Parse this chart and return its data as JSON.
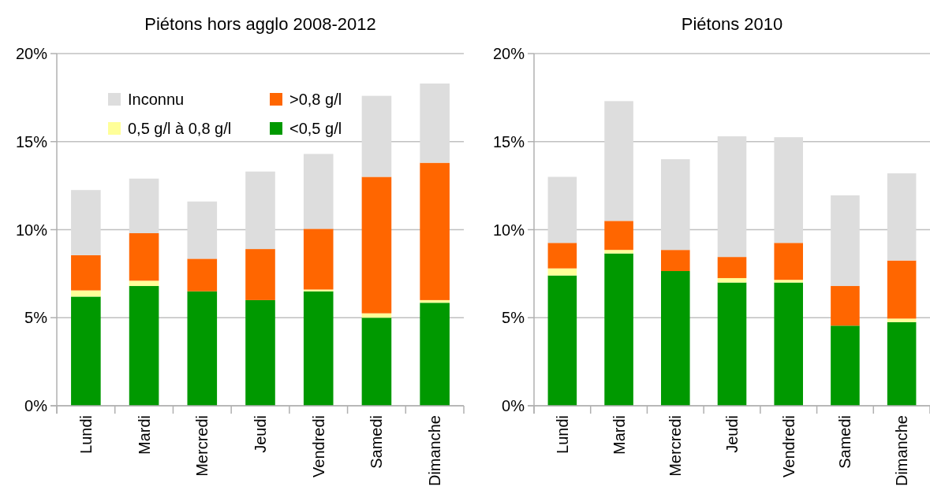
{
  "chart_data": [
    {
      "type": "bar",
      "title": "Piétons hors agglo 2008-2012",
      "stacked": true,
      "categories": [
        "Lundi",
        "Mardi",
        "Mercredi",
        "Jeudi",
        "Vendredi",
        "Samedi",
        "Dimanche"
      ],
      "series": [
        {
          "name": "<0,5 g/l",
          "color": "#009900",
          "values": [
            6.2,
            6.8,
            6.5,
            6.0,
            6.5,
            5.0,
            5.85
          ]
        },
        {
          "name": "0,5 g/l à 0,8 g/l",
          "color": "#ffff99",
          "values": [
            0.35,
            0.3,
            0,
            0,
            0.1,
            0.25,
            0.15
          ]
        },
        {
          "name": ">0,8 g/l",
          "color": "#ff6600",
          "values": [
            2.0,
            2.7,
            1.85,
            2.9,
            3.45,
            7.75,
            7.8
          ]
        },
        {
          "name": "Inconnu",
          "color": "#dddddd",
          "values": [
            3.7,
            3.1,
            3.25,
            4.4,
            4.25,
            4.6,
            4.5
          ]
        }
      ],
      "ylim": [
        0,
        20
      ],
      "yticks": [
        {
          "value": 0,
          "label": "0%"
        },
        {
          "value": 5,
          "label": "5%"
        },
        {
          "value": 10,
          "label": "10%"
        },
        {
          "value": 15,
          "label": "15%"
        },
        {
          "value": 20,
          "label": "20%"
        }
      ],
      "grid": "y",
      "legend": "top left"
    },
    {
      "type": "bar",
      "title": "Piétons 2010",
      "stacked": true,
      "categories": [
        "Lundi",
        "Mardi",
        "Mercredi",
        "Jeudi",
        "Vendredi",
        "Samedi",
        "Dimanche"
      ],
      "series": [
        {
          "color": "#009900",
          "values": [
            7.4,
            8.65,
            7.65,
            7.0,
            7.0,
            4.55,
            4.75
          ]
        },
        {
          "color": "#ffff99",
          "values": [
            0.4,
            0.2,
            0,
            0.25,
            0.15,
            0,
            0.2
          ]
        },
        {
          "color": "#ff6600",
          "values": [
            1.45,
            1.65,
            1.2,
            1.2,
            2.1,
            2.25,
            3.3
          ]
        },
        {
          "color": "#dddddd",
          "values": [
            3.75,
            6.8,
            5.15,
            6.85,
            6.0,
            5.15,
            4.95
          ]
        }
      ],
      "ylim": [
        0,
        20
      ],
      "yticks": [
        {
          "value": 0,
          "label": "0%"
        },
        {
          "value": 5,
          "label": "5%"
        },
        {
          "value": 10,
          "label": "10%"
        },
        {
          "value": 15,
          "label": "15%"
        },
        {
          "value": 20,
          "label": "20%"
        }
      ],
      "grid": "y"
    }
  ]
}
